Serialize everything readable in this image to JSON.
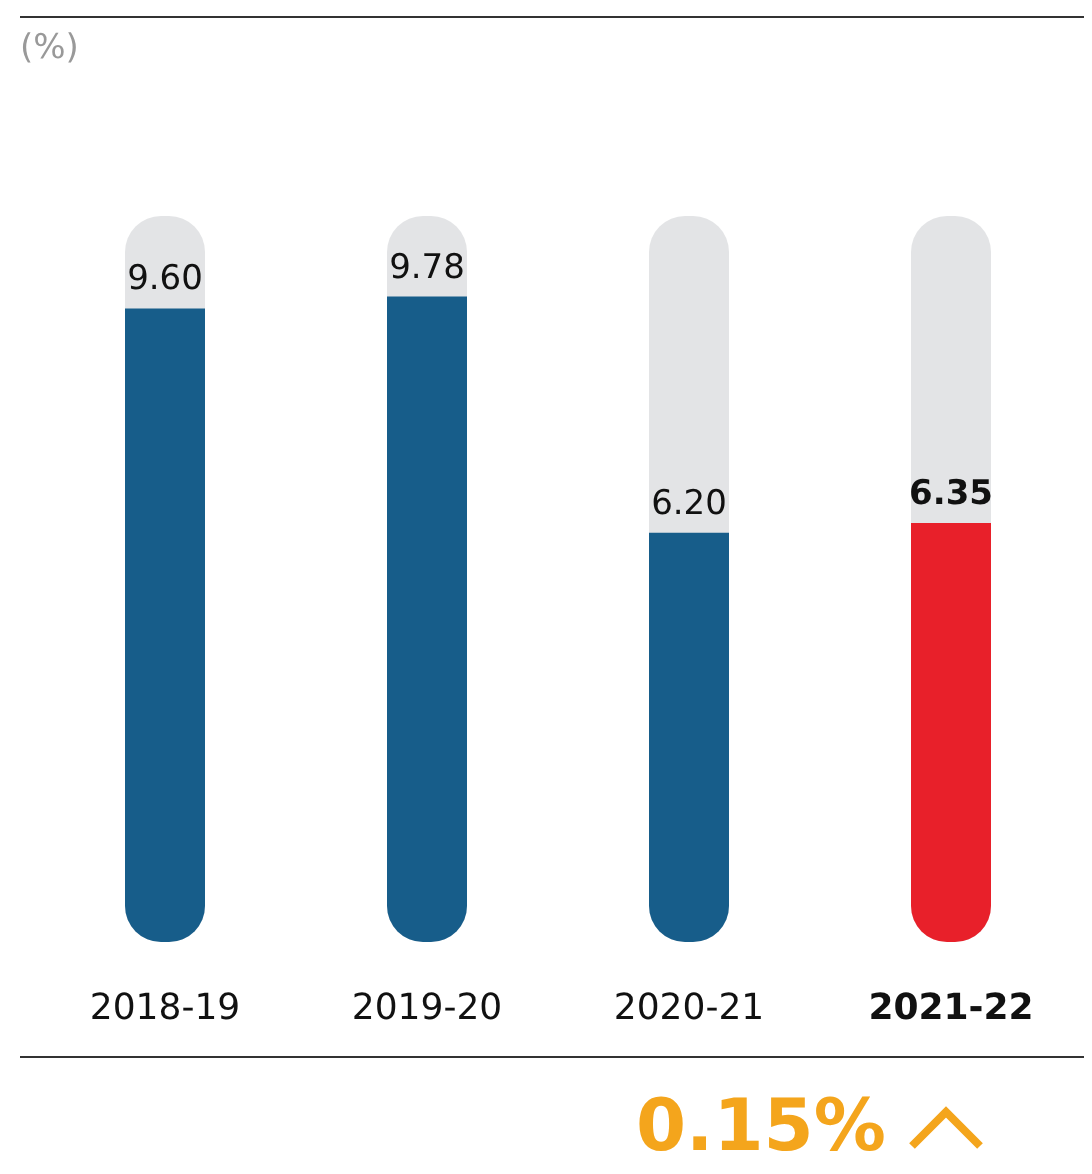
{
  "chart_data": {
    "type": "bar",
    "ylabel": "(%)",
    "categories": [
      "2018-19",
      "2019-20",
      "2020-21",
      "2021-22"
    ],
    "values": [
      9.6,
      9.78,
      6.2,
      6.35
    ],
    "value_labels": [
      "9.60",
      "9.78",
      "6.20",
      "6.35"
    ],
    "colors": [
      "#175d8a",
      "#175d8a",
      "#175d8a",
      "#e8202a"
    ],
    "ylim": [
      0,
      11
    ],
    "annotations": [
      "0.15%"
    ]
  }
}
